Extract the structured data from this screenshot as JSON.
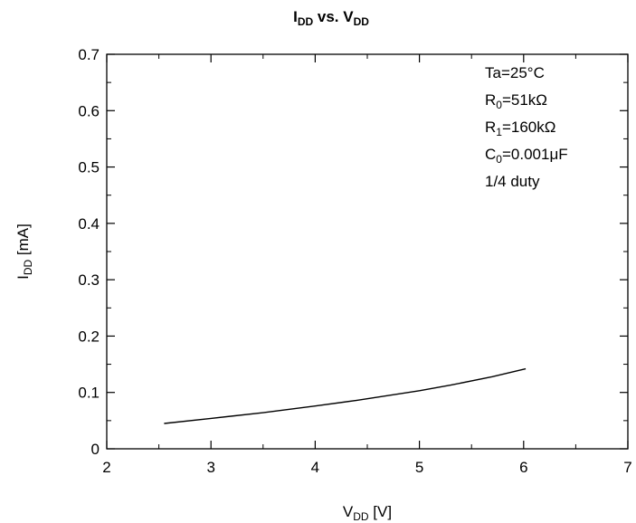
{
  "chart_data": {
    "type": "line",
    "title": {
      "main": "I",
      "sub": "DD",
      "rest": " vs. V",
      "sub2": "DD"
    },
    "xlabel": {
      "main": "V",
      "sub": "DD",
      "rest": " [V]"
    },
    "ylabel": {
      "main": "I",
      "sub": "DD",
      "rest": " [mA]"
    },
    "xlim": [
      2,
      7
    ],
    "ylim": [
      0,
      0.7
    ],
    "xticks": [
      "2",
      "3",
      "4",
      "5",
      "6",
      "7"
    ],
    "yticks": [
      "0",
      "0.1",
      "0.2",
      "0.3",
      "0.4",
      "0.5",
      "0.6",
      "0.7"
    ],
    "grid": false,
    "series": [
      {
        "color": "#000000",
        "x": [
          2.55,
          3.0,
          3.5,
          4.0,
          4.4,
          5.0,
          5.3,
          5.7,
          6.02
        ],
        "y": [
          0.045,
          0.054,
          0.064,
          0.076,
          0.086,
          0.103,
          0.113,
          0.128,
          0.142
        ]
      }
    ],
    "annotations": [
      {
        "main": "Ta=25°C"
      },
      {
        "main": "R",
        "sub": "0",
        "rest": "=51kΩ"
      },
      {
        "main": "R",
        "sub": "1",
        "rest": "=160kΩ"
      },
      {
        "main": "C",
        "sub": "0",
        "rest": "=0.001μF"
      },
      {
        "main": "1/4 duty"
      }
    ]
  }
}
